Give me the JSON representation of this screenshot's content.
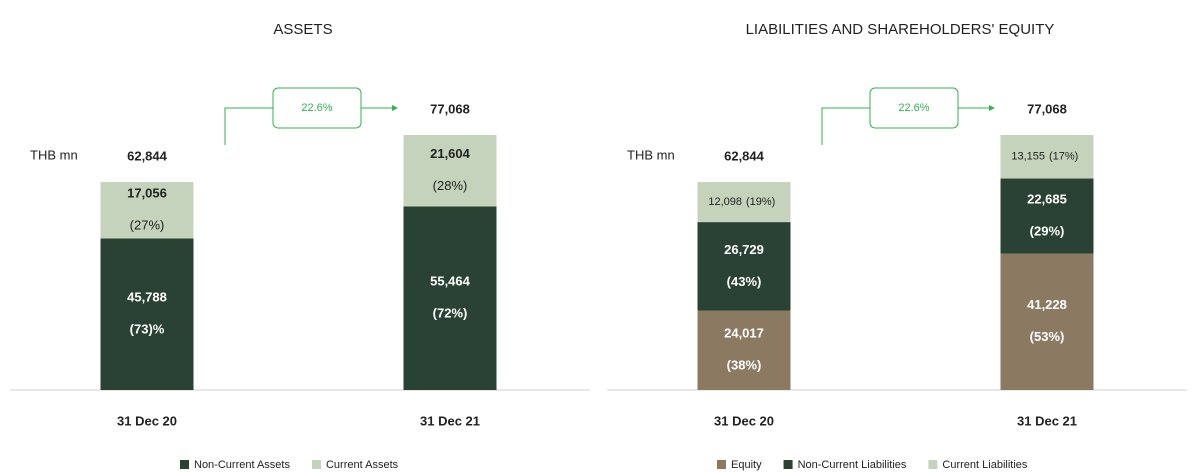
{
  "chart_data": [
    {
      "type": "stacked-bar",
      "title": "ASSETS",
      "unit_label": "THB mn",
      "annotation": "22.6%",
      "categories": [
        "31 Dec 20",
        "31 Dec 21"
      ],
      "totals": [
        62844,
        77068
      ],
      "total_labels": [
        "62,844",
        "77,068"
      ],
      "series": [
        {
          "name": "Non-Current Assets",
          "color": "#2a4233",
          "values": [
            45788,
            55464
          ],
          "value_labels": [
            "45,788",
            "55,464"
          ],
          "shares": [
            "(73)%",
            "(72%)"
          ]
        },
        {
          "name": "Current Assets",
          "color": "#c5d3bc",
          "values": [
            17056,
            21604
          ],
          "value_labels": [
            "17,056",
            "21,604"
          ],
          "shares": [
            "(27%)",
            "(28%)"
          ]
        }
      ]
    },
    {
      "type": "stacked-bar",
      "title": "LIABILITIES AND SHAREHOLDERS' EQUITY",
      "unit_label": "THB mn",
      "annotation": "22.6%",
      "categories": [
        "31 Dec 20",
        "31 Dec 21"
      ],
      "totals": [
        62844,
        77068
      ],
      "total_labels": [
        "62,844",
        "77,068"
      ],
      "series": [
        {
          "name": "Equity",
          "color": "#8b7962",
          "values": [
            24017,
            41228
          ],
          "value_labels": [
            "24,017",
            "41,228"
          ],
          "shares": [
            "(38%)",
            "(53%)"
          ]
        },
        {
          "name": "Non-Current Liabilities",
          "color": "#2a4233",
          "values": [
            26729,
            22685
          ],
          "value_labels": [
            "26,729",
            "22,685"
          ],
          "shares": [
            "(43%)",
            "(29%)"
          ]
        },
        {
          "name": "Current Liabilities",
          "color": "#c5d3bc",
          "values": [
            12098,
            13155
          ],
          "value_labels": [
            "12,098",
            "13,155"
          ],
          "shares": [
            "(19%)",
            "(17%)"
          ]
        }
      ]
    }
  ]
}
